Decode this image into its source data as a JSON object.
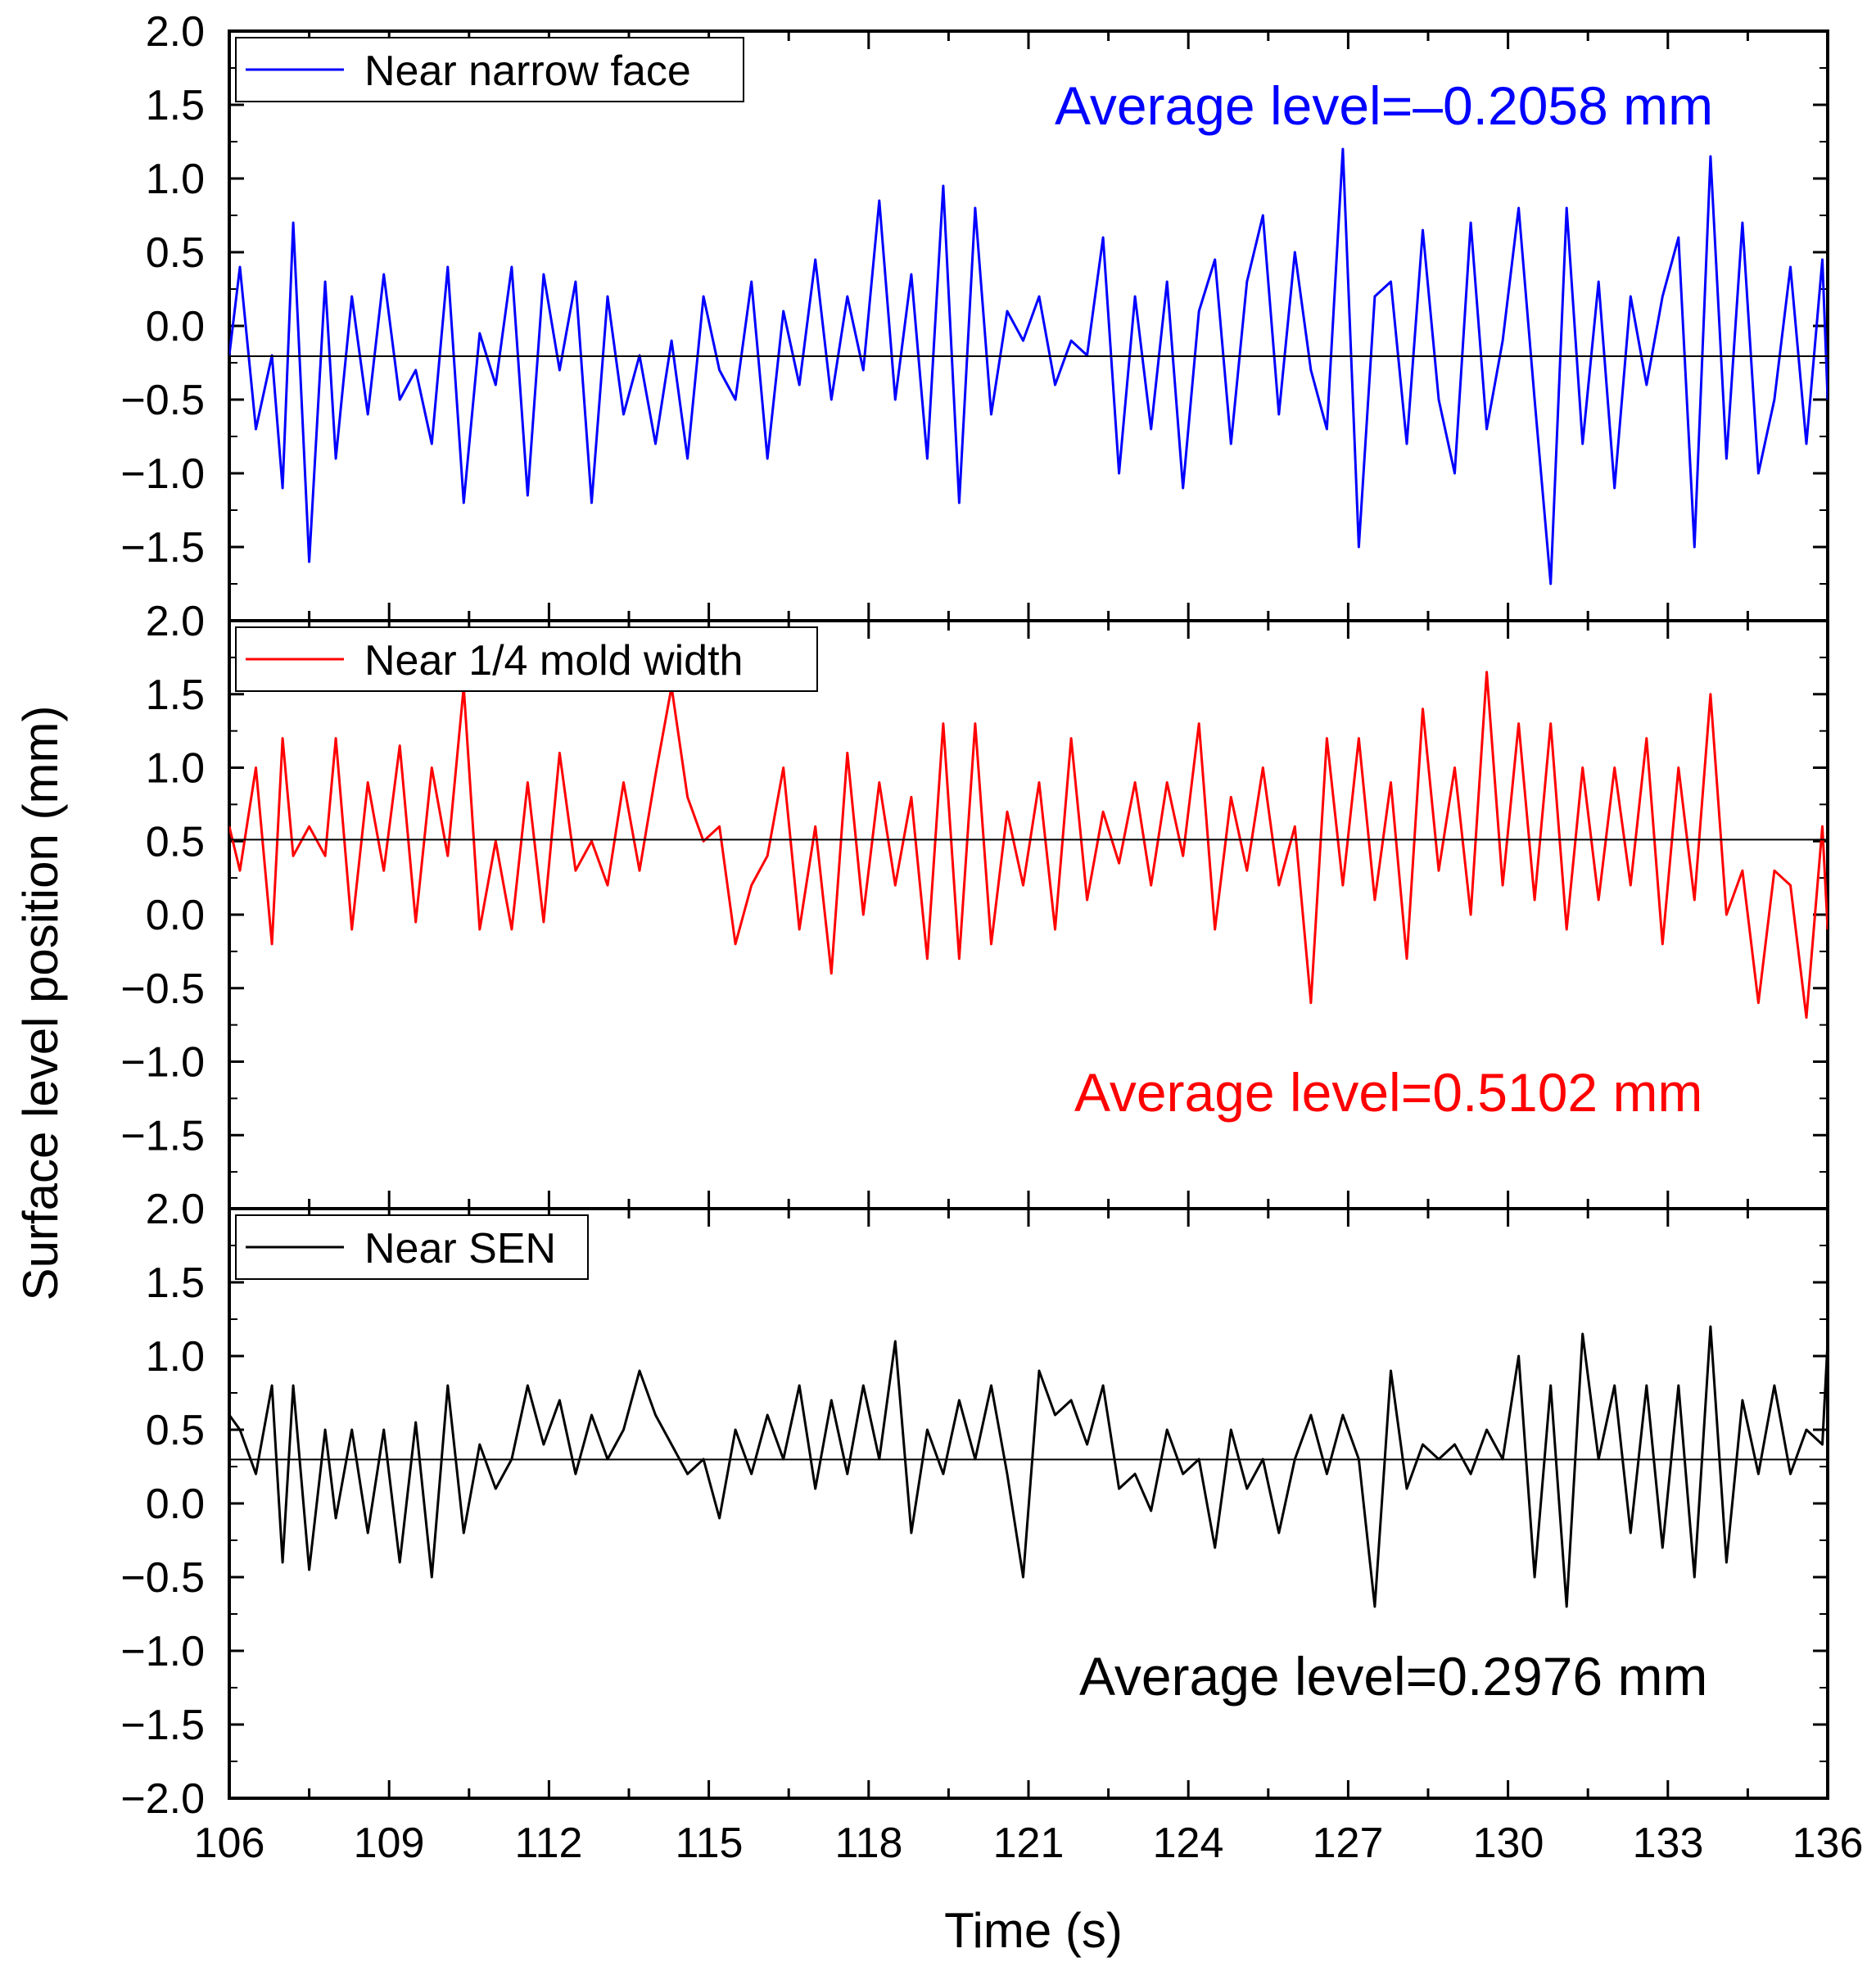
{
  "chart_data": {
    "type": "line",
    "xlabel": "Time (s)",
    "ylabel": "Surface level position (mm)",
    "xlim": [
      106,
      136
    ],
    "x_ticks": [
      "106",
      "109",
      "112",
      "115",
      "118",
      "121",
      "124",
      "127",
      "130",
      "133",
      "136"
    ],
    "panels": [
      {
        "name": "narrow",
        "legend": "Near narrow face",
        "annotation": "Average level=–0.2058 mm",
        "average": -0.2058,
        "color": "#0000ff",
        "ylim": [
          -2.0,
          2.0
        ],
        "y_ticks": [
          "2.0",
          "1.5",
          "1.0",
          "0.5",
          "0.0",
          "−0.5",
          "−1.0",
          "−1.5"
        ],
        "x": [
          106.0,
          106.2,
          106.5,
          106.8,
          107.0,
          107.2,
          107.5,
          107.8,
          108.0,
          108.3,
          108.6,
          108.9,
          109.2,
          109.5,
          109.8,
          110.1,
          110.4,
          110.7,
          111.0,
          111.3,
          111.6,
          111.9,
          112.2,
          112.5,
          112.8,
          113.1,
          113.4,
          113.7,
          114.0,
          114.3,
          114.6,
          114.9,
          115.2,
          115.5,
          115.8,
          116.1,
          116.4,
          116.7,
          117.0,
          117.3,
          117.6,
          117.9,
          118.2,
          118.5,
          118.8,
          119.1,
          119.4,
          119.7,
          120.0,
          120.3,
          120.6,
          120.9,
          121.2,
          121.5,
          121.8,
          122.1,
          122.4,
          122.7,
          123.0,
          123.3,
          123.6,
          123.9,
          124.2,
          124.5,
          124.8,
          125.1,
          125.4,
          125.7,
          126.0,
          126.3,
          126.6,
          126.9,
          127.2,
          127.5,
          127.8,
          128.1,
          128.4,
          128.7,
          129.0,
          129.3,
          129.6,
          129.9,
          130.2,
          130.5,
          130.8,
          131.1,
          131.4,
          131.7,
          132.0,
          132.3,
          132.6,
          132.9,
          133.2,
          133.5,
          133.8,
          134.1,
          134.4,
          134.7,
          135.0,
          135.3,
          135.6,
          135.9,
          136.0
        ],
        "values": [
          -0.2,
          0.4,
          -0.7,
          -0.2,
          -1.1,
          0.7,
          -1.6,
          0.3,
          -0.9,
          0.2,
          -0.6,
          0.35,
          -0.5,
          -0.3,
          -0.8,
          0.4,
          -1.2,
          -0.05,
          -0.4,
          0.4,
          -1.15,
          0.35,
          -0.3,
          0.3,
          -1.2,
          0.2,
          -0.6,
          -0.2,
          -0.8,
          -0.1,
          -0.9,
          0.2,
          -0.3,
          -0.5,
          0.3,
          -0.9,
          0.1,
          -0.4,
          0.45,
          -0.5,
          0.2,
          -0.3,
          0.85,
          -0.5,
          0.35,
          -0.9,
          0.95,
          -1.2,
          0.8,
          -0.6,
          0.1,
          -0.1,
          0.2,
          -0.4,
          -0.1,
          -0.2,
          0.6,
          -1.0,
          0.2,
          -0.7,
          0.3,
          -1.1,
          0.1,
          0.45,
          -0.8,
          0.3,
          0.75,
          -0.6,
          0.5,
          -0.3,
          -0.7,
          1.2,
          -1.5,
          0.2,
          0.3,
          -0.8,
          0.65,
          -0.5,
          -1.0,
          0.7,
          -0.7,
          -0.1,
          0.8,
          -0.5,
          -1.75,
          0.8,
          -0.8,
          0.3,
          -1.1,
          0.2,
          -0.4,
          0.2,
          0.6,
          -1.5,
          1.15,
          -0.9,
          0.7,
          -1.0,
          -0.5,
          0.4,
          -0.8,
          0.45,
          -0.5
        ]
      },
      {
        "name": "quarter",
        "legend": "Near 1/4 mold width",
        "annotation": "Average level=0.5102 mm",
        "average": 0.5102,
        "color": "#ff0000",
        "ylim": [
          -2.0,
          2.0
        ],
        "y_ticks": [
          "2.0",
          "1.5",
          "1.0",
          "0.5",
          "0.0",
          "−0.5",
          "−1.0",
          "−1.5"
        ],
        "x": [
          106.0,
          106.2,
          106.5,
          106.8,
          107.0,
          107.2,
          107.5,
          107.8,
          108.0,
          108.3,
          108.6,
          108.9,
          109.2,
          109.5,
          109.8,
          110.1,
          110.4,
          110.7,
          111.0,
          111.3,
          111.6,
          111.9,
          112.2,
          112.5,
          112.8,
          113.1,
          113.4,
          113.7,
          114.0,
          114.3,
          114.6,
          114.9,
          115.2,
          115.5,
          115.8,
          116.1,
          116.4,
          116.7,
          117.0,
          117.3,
          117.6,
          117.9,
          118.2,
          118.5,
          118.8,
          119.1,
          119.4,
          119.7,
          120.0,
          120.3,
          120.6,
          120.9,
          121.2,
          121.5,
          121.8,
          122.1,
          122.4,
          122.7,
          123.0,
          123.3,
          123.6,
          123.9,
          124.2,
          124.5,
          124.8,
          125.1,
          125.4,
          125.7,
          126.0,
          126.3,
          126.6,
          126.9,
          127.2,
          127.5,
          127.8,
          128.1,
          128.4,
          128.7,
          129.0,
          129.3,
          129.6,
          129.9,
          130.2,
          130.5,
          130.8,
          131.1,
          131.4,
          131.7,
          132.0,
          132.3,
          132.6,
          132.9,
          133.2,
          133.5,
          133.8,
          134.1,
          134.4,
          134.7,
          135.0,
          135.3,
          135.6,
          135.9,
          136.0
        ],
        "values": [
          0.6,
          0.3,
          1.0,
          -0.2,
          1.2,
          0.4,
          0.6,
          0.4,
          1.2,
          -0.1,
          0.9,
          0.3,
          1.15,
          -0.05,
          1.0,
          0.4,
          1.55,
          -0.1,
          0.5,
          -0.1,
          0.9,
          -0.05,
          1.1,
          0.3,
          0.5,
          0.2,
          0.9,
          0.3,
          0.95,
          1.55,
          0.8,
          0.5,
          0.6,
          -0.2,
          0.2,
          0.4,
          1.0,
          -0.1,
          0.6,
          -0.4,
          1.1,
          0.0,
          0.9,
          0.2,
          0.8,
          -0.3,
          1.3,
          -0.3,
          1.3,
          -0.2,
          0.7,
          0.2,
          0.9,
          -0.1,
          1.2,
          0.1,
          0.7,
          0.35,
          0.9,
          0.2,
          0.9,
          0.4,
          1.3,
          -0.1,
          0.8,
          0.3,
          1.0,
          0.2,
          0.6,
          -0.6,
          1.2,
          0.2,
          1.2,
          0.1,
          0.9,
          -0.3,
          1.4,
          0.3,
          1.0,
          0.0,
          1.65,
          0.2,
          1.3,
          0.1,
          1.3,
          -0.1,
          1.0,
          0.1,
          1.0,
          0.2,
          1.2,
          -0.2,
          1.0,
          0.1,
          1.5,
          0.0,
          0.3,
          -0.6,
          0.3,
          0.2,
          -0.7,
          0.6,
          -0.1
        ]
      },
      {
        "name": "sen",
        "legend": "Near SEN",
        "annotation": "Average level=0.2976 mm",
        "average": 0.2976,
        "color": "#000000",
        "ylim": [
          -2.0,
          2.0
        ],
        "y_ticks": [
          "2.0",
          "1.5",
          "1.0",
          "0.5",
          "0.0",
          "−0.5",
          "−1.0",
          "−1.5",
          "−2.0"
        ],
        "x": [
          106.0,
          106.2,
          106.5,
          106.8,
          107.0,
          107.2,
          107.5,
          107.8,
          108.0,
          108.3,
          108.6,
          108.9,
          109.2,
          109.5,
          109.8,
          110.1,
          110.4,
          110.7,
          111.0,
          111.3,
          111.6,
          111.9,
          112.2,
          112.5,
          112.8,
          113.1,
          113.4,
          113.7,
          114.0,
          114.3,
          114.6,
          114.9,
          115.2,
          115.5,
          115.8,
          116.1,
          116.4,
          116.7,
          117.0,
          117.3,
          117.6,
          117.9,
          118.2,
          118.5,
          118.8,
          119.1,
          119.4,
          119.7,
          120.0,
          120.3,
          120.6,
          120.9,
          121.2,
          121.5,
          121.8,
          122.1,
          122.4,
          122.7,
          123.0,
          123.3,
          123.6,
          123.9,
          124.2,
          124.5,
          124.8,
          125.1,
          125.4,
          125.7,
          126.0,
          126.3,
          126.6,
          126.9,
          127.2,
          127.5,
          127.8,
          128.1,
          128.4,
          128.7,
          129.0,
          129.3,
          129.6,
          129.9,
          130.2,
          130.5,
          130.8,
          131.1,
          131.4,
          131.7,
          132.0,
          132.3,
          132.6,
          132.9,
          133.2,
          133.5,
          133.8,
          134.1,
          134.4,
          134.7,
          135.0,
          135.3,
          135.6,
          135.9,
          136.0
        ],
        "values": [
          0.6,
          0.5,
          0.2,
          0.8,
          -0.4,
          0.8,
          -0.45,
          0.5,
          -0.1,
          0.5,
          -0.2,
          0.5,
          -0.4,
          0.55,
          -0.5,
          0.8,
          -0.2,
          0.4,
          0.1,
          0.3,
          0.8,
          0.4,
          0.7,
          0.2,
          0.6,
          0.3,
          0.5,
          0.9,
          0.6,
          0.4,
          0.2,
          0.3,
          -0.1,
          0.5,
          0.2,
          0.6,
          0.3,
          0.8,
          0.1,
          0.7,
          0.2,
          0.8,
          0.3,
          1.1,
          -0.2,
          0.5,
          0.2,
          0.7,
          0.3,
          0.8,
          0.2,
          -0.5,
          0.9,
          0.6,
          0.7,
          0.4,
          0.8,
          0.1,
          0.2,
          -0.05,
          0.5,
          0.2,
          0.3,
          -0.3,
          0.5,
          0.1,
          0.3,
          -0.2,
          0.3,
          0.6,
          0.2,
          0.6,
          0.3,
          -0.7,
          0.9,
          0.1,
          0.4,
          0.3,
          0.4,
          0.2,
          0.5,
          0.3,
          1.0,
          -0.5,
          0.8,
          -0.7,
          1.15,
          0.3,
          0.8,
          -0.2,
          0.8,
          -0.3,
          0.8,
          -0.5,
          1.2,
          -0.4,
          0.7,
          0.2,
          0.8,
          0.2,
          0.5,
          0.4,
          1.1
        ]
      }
    ]
  }
}
